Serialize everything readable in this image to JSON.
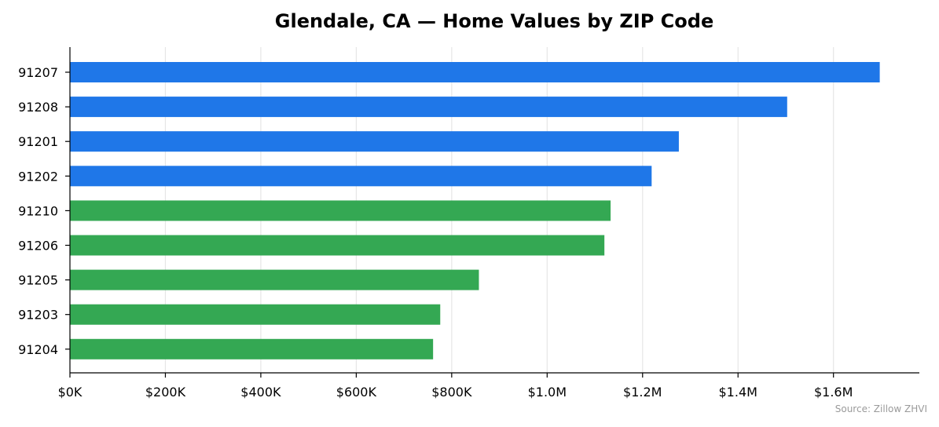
{
  "chart_data": {
    "type": "bar",
    "orientation": "horizontal",
    "title": "Glendale, CA — Home Values by ZIP Code",
    "source_note": "Source: Zillow ZHVI",
    "categories": [
      "91207",
      "91208",
      "91201",
      "91202",
      "91210",
      "91206",
      "91205",
      "91203",
      "91204"
    ],
    "values": [
      1697000,
      1503000,
      1276000,
      1219000,
      1133000,
      1120000,
      857000,
      776000,
      761000
    ],
    "bar_colors": [
      "#1f77e8",
      "#1f77e8",
      "#1f77e8",
      "#1f77e8",
      "#34a853",
      "#34a853",
      "#34a853",
      "#34a853",
      "#34a853"
    ],
    "xlim": [
      0,
      1780000
    ],
    "x_ticks": [
      {
        "value": 0,
        "label": "$0K"
      },
      {
        "value": 200000,
        "label": "$200K"
      },
      {
        "value": 400000,
        "label": "$400K"
      },
      {
        "value": 600000,
        "label": "$600K"
      },
      {
        "value": 800000,
        "label": "$800K"
      },
      {
        "value": 1000000,
        "label": "$1.0M"
      },
      {
        "value": 1200000,
        "label": "$1.2M"
      },
      {
        "value": 1400000,
        "label": "$1.4M"
      },
      {
        "value": 1600000,
        "label": "$1.6M"
      }
    ],
    "xlabel": "",
    "ylabel": "",
    "grid": "vertical",
    "legend": "none"
  }
}
